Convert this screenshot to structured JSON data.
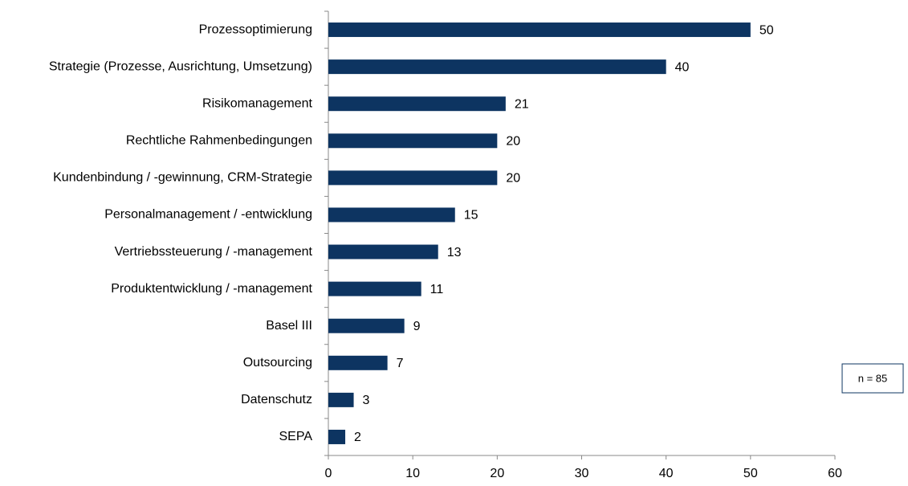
{
  "chart_data": {
    "type": "barh",
    "categories": [
      "Prozessoptimierung",
      "Strategie (Prozesse, Ausrichtung, Umsetzung)",
      "Risikomanagement",
      "Rechtliche Rahmenbedingungen",
      "Kundenbindung  / -gewinnung, CRM-Strategie",
      "Personalmanagement / -entwicklung",
      "Vertriebssteuerung / -management",
      "Produktentwicklung / -management",
      "Basel III",
      "Outsourcing",
      "Datenschutz",
      "SEPA"
    ],
    "values": [
      50,
      40,
      21,
      20,
      20,
      15,
      13,
      11,
      9,
      7,
      3,
      2
    ],
    "color": "#0d3461",
    "xlim": [
      0,
      60
    ],
    "xticks": [
      0,
      10,
      20,
      30,
      40,
      50,
      60
    ],
    "annotation": "n = 85"
  }
}
